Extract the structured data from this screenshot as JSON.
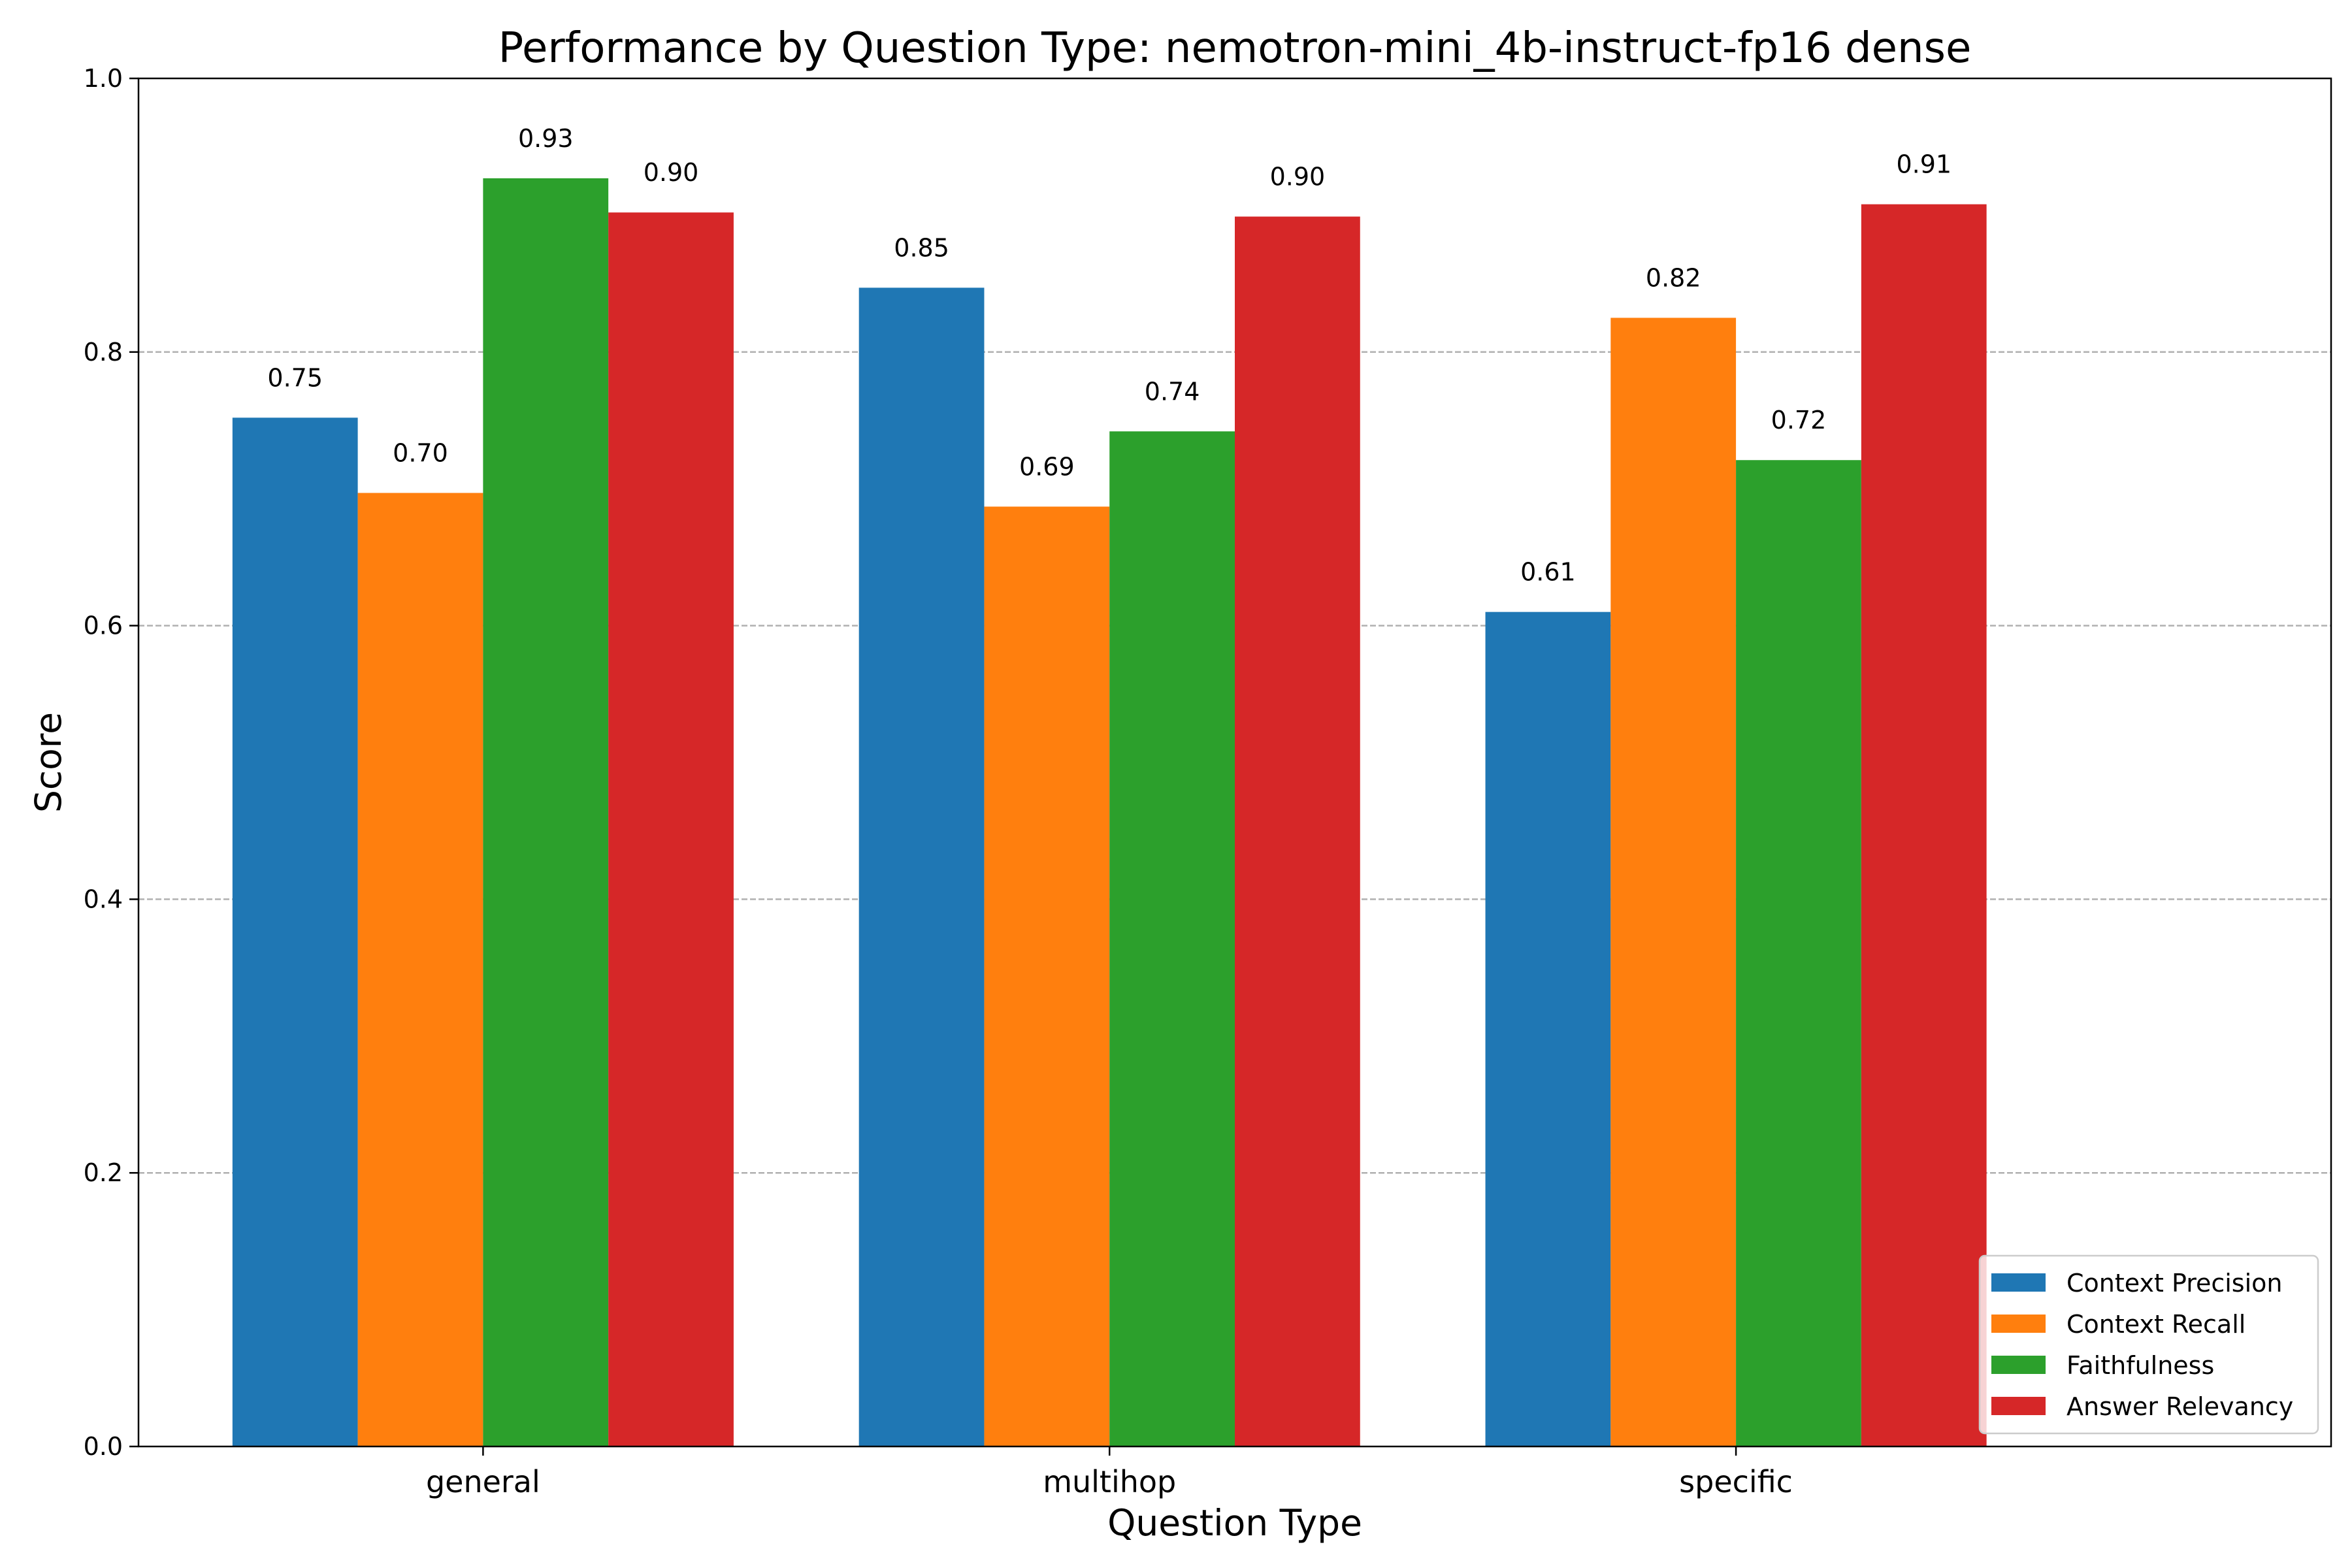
{
  "chart_data": {
    "type": "bar",
    "title": "Performance by Question Type: nemotron-mini_4b-instruct-fp16 dense",
    "xlabel": "Question Type",
    "ylabel": "Score",
    "ylim": [
      0,
      1.0
    ],
    "yticks": [
      "0.0",
      "0.2",
      "0.4",
      "0.6",
      "0.8",
      "1.0"
    ],
    "grid": "y-dashed",
    "legend_position": "bottom-right",
    "categories": [
      "general",
      "multihop",
      "specific"
    ],
    "series": [
      {
        "name": "Context Precision",
        "color": "#1f77b4",
        "values": [
          0.752,
          0.847,
          0.61
        ],
        "labels": [
          "0.75",
          "0.85",
          "0.61"
        ]
      },
      {
        "name": "Context Recall",
        "color": "#ff7f0e",
        "values": [
          0.697,
          0.687,
          0.825
        ],
        "labels": [
          "0.70",
          "0.69",
          "0.82"
        ]
      },
      {
        "name": "Faithfulness",
        "color": "#2ca02c",
        "values": [
          0.927,
          0.742,
          0.721
        ],
        "labels": [
          "0.93",
          "0.74",
          "0.72"
        ]
      },
      {
        "name": "Answer Relevancy",
        "color": "#d62728",
        "values": [
          0.902,
          0.899,
          0.908
        ],
        "labels": [
          "0.90",
          "0.90",
          "0.91"
        ]
      }
    ]
  }
}
